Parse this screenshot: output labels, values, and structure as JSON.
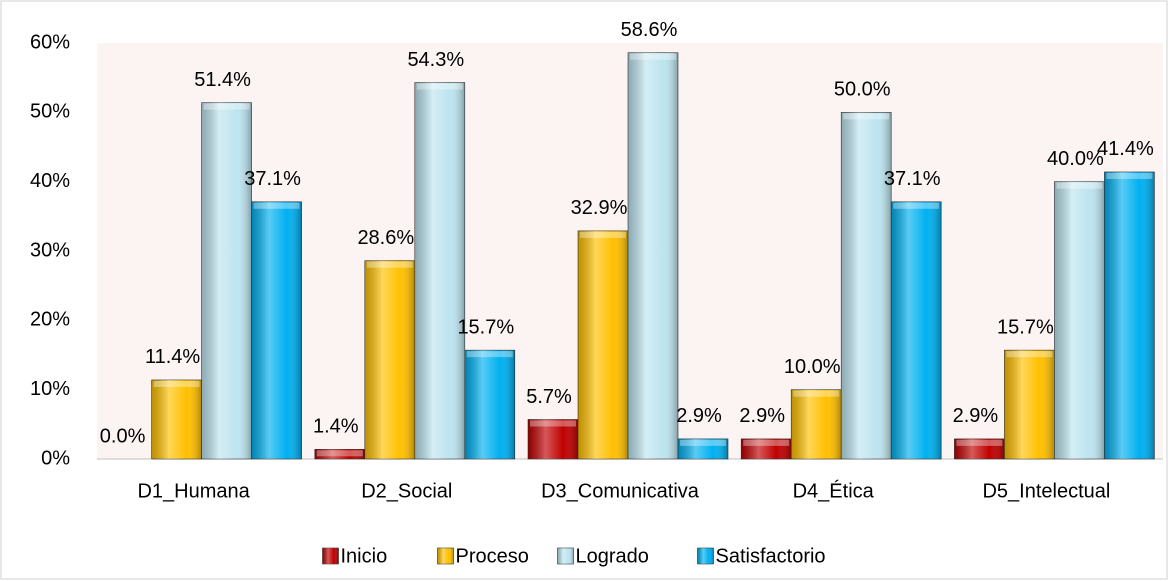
{
  "chart_data": {
    "type": "bar",
    "categories": [
      "D1_Humana",
      "D2_Social",
      "D3_Comunicativa",
      "D4_Ética",
      "D5_Intelectual"
    ],
    "series": [
      {
        "name": "Inicio",
        "color": "#c00000",
        "values": [
          0.0,
          1.4,
          5.7,
          2.9,
          2.9
        ],
        "value_labels": [
          "0.0%",
          "1.4%",
          "5.7%",
          "2.9%",
          "2.9%"
        ]
      },
      {
        "name": "Proceso",
        "color": "#ffc000",
        "values": [
          11.4,
          28.6,
          32.9,
          10.0,
          15.7
        ],
        "value_labels": [
          "11.4%",
          "28.6%",
          "32.9%",
          "10.0%",
          "15.7%"
        ]
      },
      {
        "name": "Logrado",
        "color": "#bde4ef",
        "values": [
          51.4,
          54.3,
          58.6,
          50.0,
          40.0
        ],
        "value_labels": [
          "51.4%",
          "54.3%",
          "58.6%",
          "50.0%",
          "40.0%"
        ]
      },
      {
        "name": "Satisfactorio",
        "color": "#00b0f0",
        "values": [
          37.1,
          15.7,
          2.9,
          37.1,
          41.4
        ],
        "value_labels": [
          "37.1%",
          "15.7%",
          "2.9%",
          "37.1%",
          "41.4%"
        ]
      }
    ],
    "ylim": [
      0,
      60
    ],
    "yticks": [
      {
        "value": 0,
        "label": "0%"
      },
      {
        "value": 10,
        "label": "10%"
      },
      {
        "value": 20,
        "label": "20%"
      },
      {
        "value": 30,
        "label": "30%"
      },
      {
        "value": 40,
        "label": "40%"
      },
      {
        "value": 50,
        "label": "50%"
      },
      {
        "value": 60,
        "label": "60%"
      }
    ],
    "grid": false
  }
}
